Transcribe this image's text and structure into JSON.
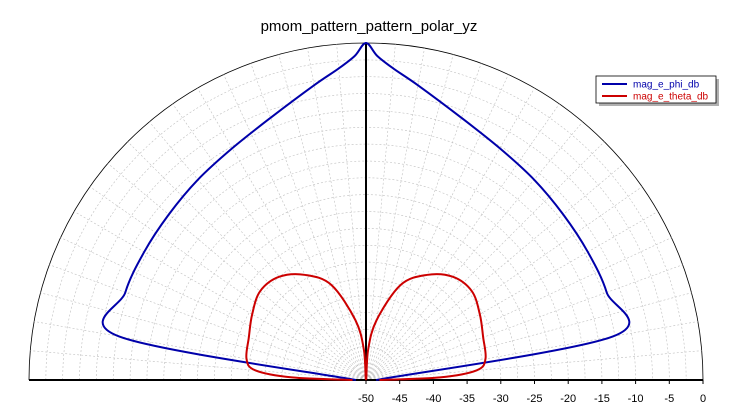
{
  "chart_data": {
    "type": "polar",
    "title": "pmom_pattern_pattern_polar_yz",
    "radial_axis": {
      "min": -50,
      "max": 0,
      "unit": "dB",
      "tick_labels": [
        "-50",
        "-45",
        "-40",
        "-35",
        "-30",
        "-25",
        "-20",
        "-15",
        "-10",
        "-5",
        "0"
      ]
    },
    "angular_range_deg": [
      0,
      180
    ],
    "grid": true,
    "legend_position": "top-right",
    "series": [
      {
        "name": "mag_e_phi_db",
        "color": "#0000aa",
        "theta_deg": [
          0,
          10,
          20,
          30,
          40,
          50,
          60,
          70,
          80,
          85,
          88,
          90,
          92,
          95,
          100,
          110,
          120,
          130,
          140,
          150,
          160,
          170,
          180
        ],
        "r_db": [
          -48.5,
          -12.8,
          -12.0,
          -12.0,
          -11.8,
          -11.2,
          -10.3,
          -8.6,
          -5.6,
          -3.6,
          -1.9,
          0.0,
          -1.9,
          -3.6,
          -5.6,
          -8.6,
          -10.3,
          -11.2,
          -11.8,
          -12.0,
          -12.0,
          -12.8,
          -48.5
        ]
      },
      {
        "name": "mag_e_theta_db",
        "color": "#cc0000",
        "theta_deg": [
          0,
          2,
          5,
          10,
          20,
          30,
          40,
          50,
          60,
          70,
          80,
          86,
          90,
          94,
          100,
          110,
          120,
          130,
          140,
          150,
          160,
          170,
          175,
          178,
          180
        ],
        "r_db": [
          -48.0,
          -39.0,
          -33.5,
          -32.0,
          -31.5,
          -30.5,
          -29.5,
          -30.0,
          -32.0,
          -35.0,
          -41.0,
          -45.5,
          -50.0,
          -45.5,
          -41.0,
          -35.0,
          -32.0,
          -30.0,
          -29.5,
          -30.5,
          -31.5,
          -32.0,
          -33.5,
          -39.0,
          -48.0
        ]
      }
    ]
  }
}
